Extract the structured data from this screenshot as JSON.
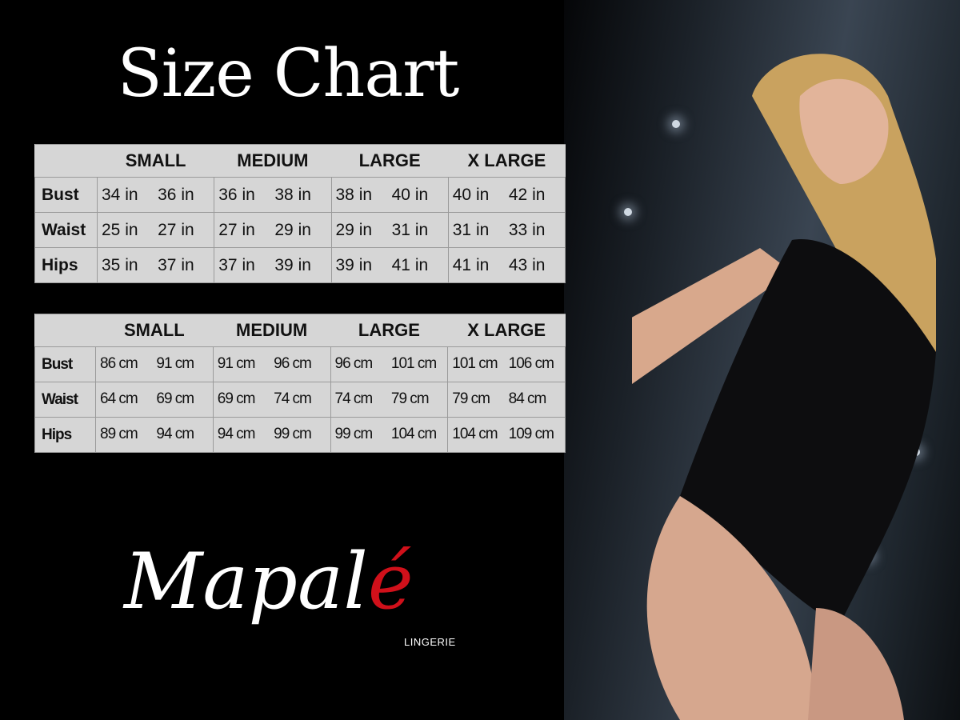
{
  "title": "Size Chart",
  "sizes": [
    "SMALL",
    "MEDIUM",
    "LARGE",
    "X LARGE"
  ],
  "inches": [
    {
      "label": "Bust",
      "values": [
        "34 in",
        "36 in",
        "36 in",
        "38 in",
        "38 in",
        "40 in",
        "40 in",
        "42 in"
      ]
    },
    {
      "label": "Waist",
      "values": [
        "25 in",
        "27 in",
        "27 in",
        "29 in",
        "29 in",
        "31 in",
        "31 in",
        "33 in"
      ]
    },
    {
      "label": "Hips",
      "values": [
        "35 in",
        "37 in",
        "37 in",
        "39 in",
        "39 in",
        "41 in",
        "41 in",
        "43 in"
      ]
    }
  ],
  "centimeters": [
    {
      "label": "Bust",
      "values": [
        "86 cm",
        "91 cm",
        "91 cm",
        "96 cm",
        "96 cm",
        "101 cm",
        "101 cm",
        "106 cm"
      ]
    },
    {
      "label": "Waist",
      "values": [
        "64 cm",
        "69 cm",
        "69 cm",
        "74 cm",
        "74 cm",
        "79 cm",
        "79 cm",
        "84 cm"
      ]
    },
    {
      "label": "Hips",
      "values": [
        "89 cm",
        "94 cm",
        "94 cm",
        "99 cm",
        "99 cm",
        "104 cm",
        "104 cm",
        "109 cm"
      ]
    }
  ],
  "brand": {
    "name": "Mapalé",
    "tagline": "LINGERIE",
    "accent": "#d0101a"
  }
}
